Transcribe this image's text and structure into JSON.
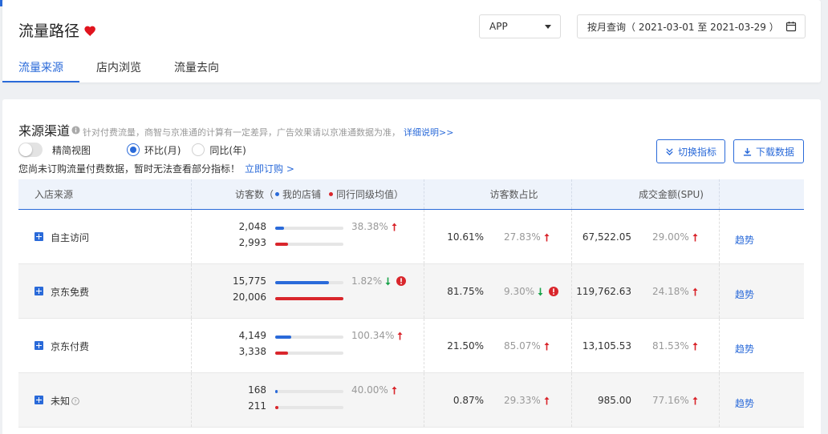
{
  "header": {
    "title": "流量路径",
    "platform": "APP",
    "date_query": "按月查询（ 2021-03-01 至 2021-03-29 ）",
    "tabs": [
      {
        "label": "流量来源",
        "active": true
      },
      {
        "label": "店内浏览",
        "active": false
      },
      {
        "label": "流量去向",
        "active": false
      }
    ]
  },
  "section": {
    "title": "来源渠道",
    "note": "针对付费流量，商智与京准通的计算有一定差异，广告效果请以京准通数据为准，",
    "detail_link": "详细说明>>",
    "simple_view_label": "精简视图",
    "mom_label": "环比(月)",
    "yoy_label": "同比(年)",
    "notice": "您尚未订购流量付费数据，暂时无法查看部分指标！",
    "subscribe_link": "立即订购 >",
    "switch_button": "切换指标",
    "download_button": "下载数据"
  },
  "table": {
    "headers": {
      "source": "入店来源",
      "visitors": "访客数（",
      "my_shop": "我的店铺",
      "peer_avg": "同行同级均值",
      "visitors_close": "）",
      "share": "访客数占比",
      "gmv": "成交金额(SPU)"
    },
    "colors": {
      "accent": "#2a6ad9",
      "up": "#d9262c",
      "down": "#1aa34a",
      "warn": "#d9262c"
    },
    "rows": [
      {
        "name": "自主访问",
        "has_help": false,
        "my": "2,048",
        "peer": "2,993",
        "my_fill": 0.13,
        "peer_fill": 0.19,
        "visitor_change": "38.38%",
        "visitor_dir": "up",
        "visitor_warn": false,
        "share": "10.61%",
        "share_change": "27.83%",
        "share_dir": "up",
        "share_warn": false,
        "gmv": "67,522.05",
        "gmv_change": "29.00%",
        "gmv_dir": "up",
        "trend": "趋势"
      },
      {
        "name": "京东免费",
        "has_help": false,
        "my": "15,775",
        "peer": "20,006",
        "my_fill": 0.79,
        "peer_fill": 1.0,
        "visitor_change": "1.82%",
        "visitor_dir": "down",
        "visitor_warn": true,
        "share": "81.75%",
        "share_change": "9.30%",
        "share_dir": "down",
        "share_warn": true,
        "gmv": "119,762.63",
        "gmv_change": "24.18%",
        "gmv_dir": "up",
        "trend": "趋势"
      },
      {
        "name": "京东付费",
        "has_help": false,
        "my": "4,149",
        "peer": "3,338",
        "my_fill": 0.24,
        "peer_fill": 0.19,
        "visitor_change": "100.34%",
        "visitor_dir": "up",
        "visitor_warn": false,
        "share": "21.50%",
        "share_change": "85.07%",
        "share_dir": "up",
        "share_warn": false,
        "gmv": "13,105.53",
        "gmv_change": "81.53%",
        "gmv_dir": "up",
        "trend": "趋势"
      },
      {
        "name": "未知",
        "has_help": true,
        "my": "168",
        "peer": "211",
        "my_fill": 0.04,
        "peer_fill": 0.05,
        "visitor_change": "40.00%",
        "visitor_dir": "up",
        "visitor_warn": false,
        "share": "0.87%",
        "share_change": "29.33%",
        "share_dir": "up",
        "share_warn": false,
        "gmv": "985.00",
        "gmv_change": "77.16%",
        "gmv_dir": "up",
        "trend": "趋势"
      }
    ]
  }
}
